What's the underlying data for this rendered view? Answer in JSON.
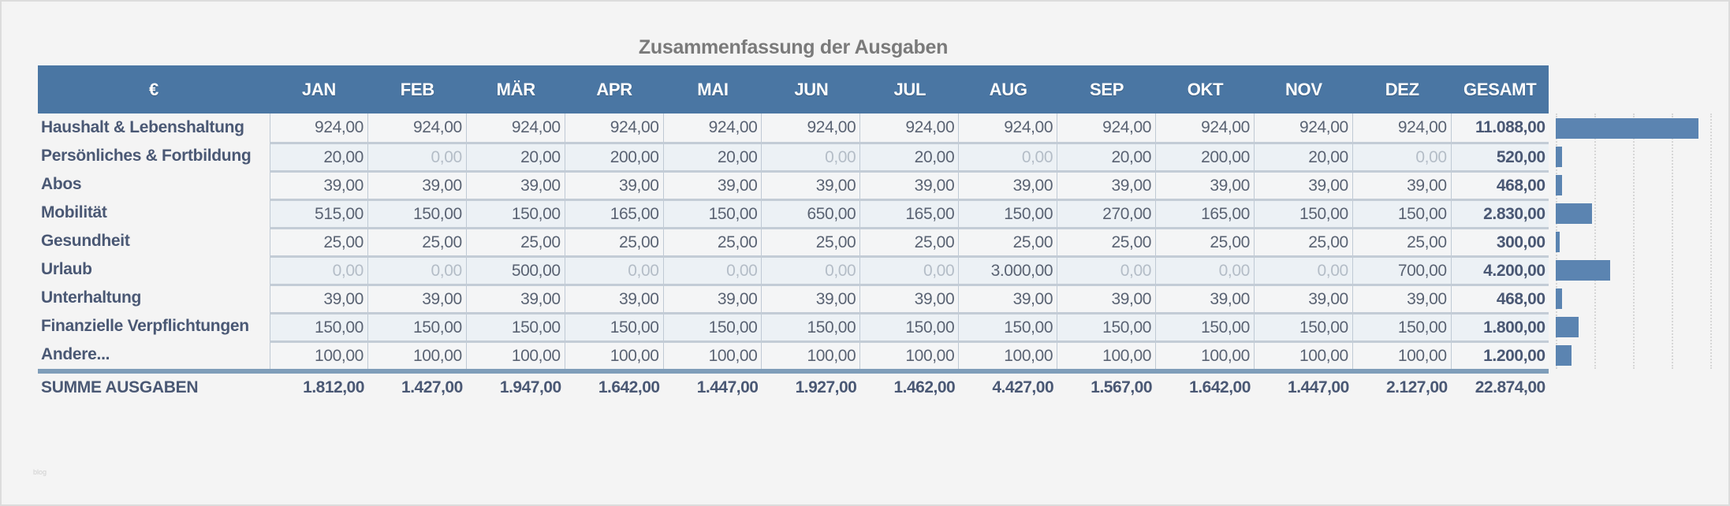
{
  "title": "Zusammenfassung der Ausgaben",
  "header": {
    "currency": "€",
    "months": [
      "JAN",
      "FEB",
      "MÄR",
      "APR",
      "MAI",
      "JUN",
      "JUL",
      "AUG",
      "SEP",
      "OKT",
      "NOV",
      "DEZ"
    ],
    "total": "GESAMT"
  },
  "rows": [
    {
      "label": "Haushalt & Lebenshaltung",
      "values": [
        "924,00",
        "924,00",
        "924,00",
        "924,00",
        "924,00",
        "924,00",
        "924,00",
        "924,00",
        "924,00",
        "924,00",
        "924,00",
        "924,00"
      ],
      "total": "11.088,00",
      "total_num": 11088
    },
    {
      "label": "Persönliches & Fortbildung",
      "values": [
        "20,00",
        "0,00",
        "20,00",
        "200,00",
        "20,00",
        "0,00",
        "20,00",
        "0,00",
        "20,00",
        "200,00",
        "20,00",
        "0,00"
      ],
      "total": "520,00",
      "total_num": 520
    },
    {
      "label": "Abos",
      "values": [
        "39,00",
        "39,00",
        "39,00",
        "39,00",
        "39,00",
        "39,00",
        "39,00",
        "39,00",
        "39,00",
        "39,00",
        "39,00",
        "39,00"
      ],
      "total": "468,00",
      "total_num": 468
    },
    {
      "label": "Mobilität",
      "values": [
        "515,00",
        "150,00",
        "150,00",
        "165,00",
        "150,00",
        "650,00",
        "165,00",
        "150,00",
        "270,00",
        "165,00",
        "150,00",
        "150,00"
      ],
      "total": "2.830,00",
      "total_num": 2830
    },
    {
      "label": "Gesundheit",
      "values": [
        "25,00",
        "25,00",
        "25,00",
        "25,00",
        "25,00",
        "25,00",
        "25,00",
        "25,00",
        "25,00",
        "25,00",
        "25,00",
        "25,00"
      ],
      "total": "300,00",
      "total_num": 300
    },
    {
      "label": "Urlaub",
      "values": [
        "0,00",
        "0,00",
        "500,00",
        "0,00",
        "0,00",
        "0,00",
        "0,00",
        "3.000,00",
        "0,00",
        "0,00",
        "0,00",
        "700,00"
      ],
      "total": "4.200,00",
      "total_num": 4200
    },
    {
      "label": "Unterhaltung",
      "values": [
        "39,00",
        "39,00",
        "39,00",
        "39,00",
        "39,00",
        "39,00",
        "39,00",
        "39,00",
        "39,00",
        "39,00",
        "39,00",
        "39,00"
      ],
      "total": "468,00",
      "total_num": 468
    },
    {
      "label": "Finanzielle Verpflichtungen",
      "values": [
        "150,00",
        "150,00",
        "150,00",
        "150,00",
        "150,00",
        "150,00",
        "150,00",
        "150,00",
        "150,00",
        "150,00",
        "150,00",
        "150,00"
      ],
      "total": "1.800,00",
      "total_num": 1800
    },
    {
      "label": "Andere...",
      "values": [
        "100,00",
        "100,00",
        "100,00",
        "100,00",
        "100,00",
        "100,00",
        "100,00",
        "100,00",
        "100,00",
        "100,00",
        "100,00",
        "100,00"
      ],
      "total": "1.200,00",
      "total_num": 1200
    }
  ],
  "summary": {
    "label": "SUMME AUSGABEN",
    "values": [
      "1.812,00",
      "1.427,00",
      "1.947,00",
      "1.642,00",
      "1.447,00",
      "1.927,00",
      "1.462,00",
      "4.427,00",
      "1.567,00",
      "1.642,00",
      "1.447,00",
      "2.127,00"
    ],
    "total": "22.874,00"
  },
  "chart_data": {
    "type": "bar",
    "orientation": "horizontal",
    "categories": [
      "Haushalt & Lebenshaltung",
      "Persönliches & Fortbildung",
      "Abos",
      "Mobilität",
      "Gesundheit",
      "Urlaub",
      "Unterhaltung",
      "Finanzielle Verpflichtungen",
      "Andere..."
    ],
    "values": [
      11088,
      520,
      468,
      2830,
      300,
      4200,
      468,
      1800,
      1200
    ],
    "title": "",
    "xlabel": "",
    "ylabel": "",
    "xlim": [
      0,
      12000
    ],
    "grid": true,
    "grid_step": 3000,
    "color": "#5b84b1"
  },
  "colors": {
    "header_bg": "#4a76a3",
    "label_text": "#4a5874",
    "zero_text": "#b4bdc7",
    "bar": "#5b84b1",
    "sum_line": "#7f9db9"
  },
  "watermark": "blog"
}
